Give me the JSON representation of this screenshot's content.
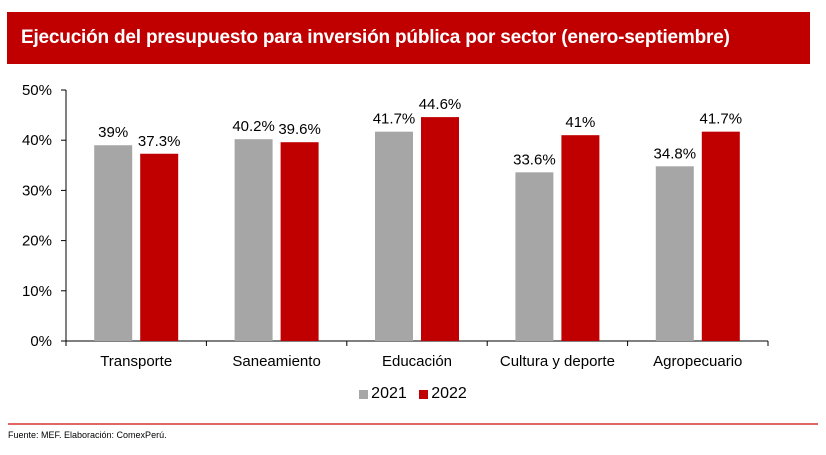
{
  "header": {
    "title": "Ejecución del presupuesto para inversión pública por sector (enero-septiembre)"
  },
  "colors": {
    "brand": "#c00000",
    "series_2021": "#a6a6a6",
    "series_2022": "#c00000",
    "footer_rule": "#e06666"
  },
  "chart_data": {
    "type": "bar",
    "title": "Ejecución del presupuesto para inversión pública por sector (enero-septiembre)",
    "xlabel": "",
    "ylabel": "",
    "ylim": [
      0,
      50
    ],
    "yticks": [
      0,
      10,
      20,
      30,
      40,
      50
    ],
    "ytick_labels": [
      "0%",
      "10%",
      "20%",
      "30%",
      "40%",
      "50%"
    ],
    "grid": false,
    "legend_position": "bottom",
    "categories": [
      "Transporte",
      "Saneamiento",
      "Educación",
      "Cultura y deporte",
      "Agropecuario"
    ],
    "series": [
      {
        "name": "2021",
        "color": "#a6a6a6",
        "values": [
          39,
          40.2,
          41.7,
          33.6,
          34.8
        ],
        "labels": [
          "39%",
          "40.2%",
          "41.7%",
          "33.6%",
          "34.8%"
        ]
      },
      {
        "name": "2022",
        "color": "#c00000",
        "values": [
          37.3,
          39.6,
          44.6,
          41,
          41.7
        ],
        "labels": [
          "37.3%",
          "39.6%",
          "44.6%",
          "41%",
          "41.7%"
        ]
      }
    ]
  },
  "legend": {
    "items": [
      "2021",
      "2022"
    ]
  },
  "footer": {
    "source": "Fuente: MEF. Elaboración: ComexPerú."
  }
}
